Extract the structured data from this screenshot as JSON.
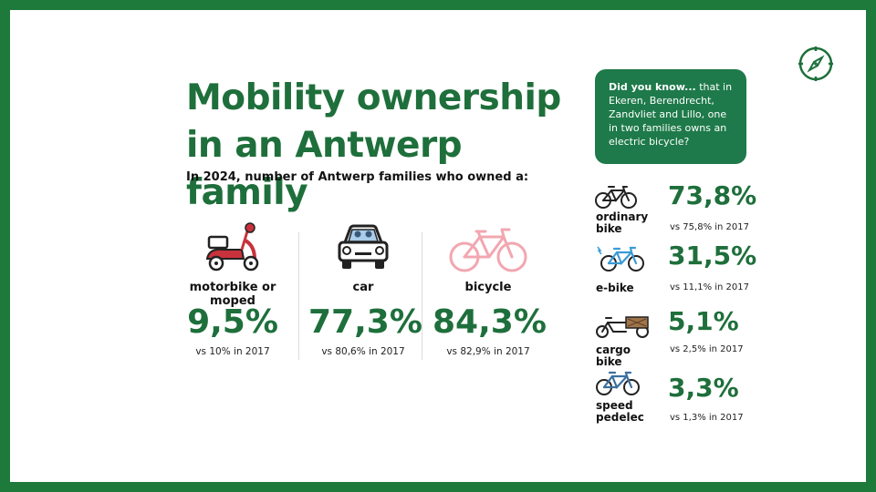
{
  "title_line1": "Mobility ownership",
  "title_line2": "in an Antwerp family",
  "subtitle": "In 2024, number of Antwerp families who owned a:",
  "chart_data": {
    "type": "table",
    "main": [
      {
        "label": "motorbike or moped",
        "value": "9,5%",
        "compare": "vs 10% in 2017"
      },
      {
        "label": "car",
        "value": "77,3%",
        "compare": "vs 80,6% in 2017"
      },
      {
        "label": "bicycle",
        "value": "84,3%",
        "compare": "vs 82,9% in 2017"
      }
    ],
    "bike_types": [
      {
        "label": "ordinary bike",
        "value": "73,8%",
        "compare": "vs 75,8% in 2017"
      },
      {
        "label": "e-bike",
        "value": "31,5%",
        "compare": "vs 11,1% in 2017"
      },
      {
        "label": "cargo bike",
        "value": "5,1%",
        "compare": "vs 2,5% in 2017"
      },
      {
        "label": "speed pedelec",
        "value": "3,3%",
        "compare": "vs 1,3% in 2017"
      }
    ]
  },
  "callout": {
    "lead": "Did you know...",
    "text": " that in Ekeren, Berendrecht, Zandvliet and Lillo, one in two families owns an electric bicycle?"
  },
  "colors": {
    "brand_green": "#1e6f3b",
    "frame": "#1e7a3a",
    "moped_red": "#c8323c",
    "bike_pink": "#f2a7b0",
    "ebike_blue": "#3a9bd5"
  },
  "icons": [
    "moped-icon",
    "car-icon",
    "bicycle-icon",
    "ordinary-bike-icon",
    "e-bike-icon",
    "cargo-bike-icon",
    "speed-pedelec-icon",
    "compass-icon"
  ]
}
